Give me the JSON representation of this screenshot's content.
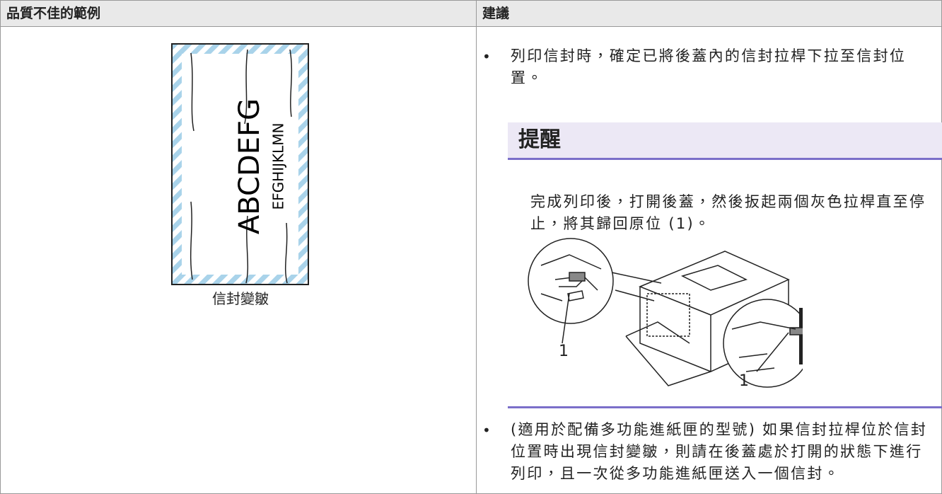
{
  "table": {
    "header": [
      "品質不佳的範例",
      "建議"
    ],
    "example": {
      "image_texts": [
        "ABCDEFG",
        "EFGHIJKLMN"
      ],
      "caption": "信封變皺"
    },
    "suggestions": [
      "列印信封時，確定已將後蓋內的信封拉桿下拉至信封位置。",
      "(適用於配備多功能進紙匣的型號) 如果信封拉桿位於信封位置時出現信封變皺，則請在後蓋處於打開的狀態下進行列印，且一次從多功能進紙匣送入一個信封。"
    ]
  },
  "note": {
    "title": "提醒",
    "text": "完成列印後，打開後蓋，然後扳起兩個灰色拉桿直至停止，將其歸回原位 (1)。",
    "figure_labels": [
      "1",
      "1"
    ]
  }
}
